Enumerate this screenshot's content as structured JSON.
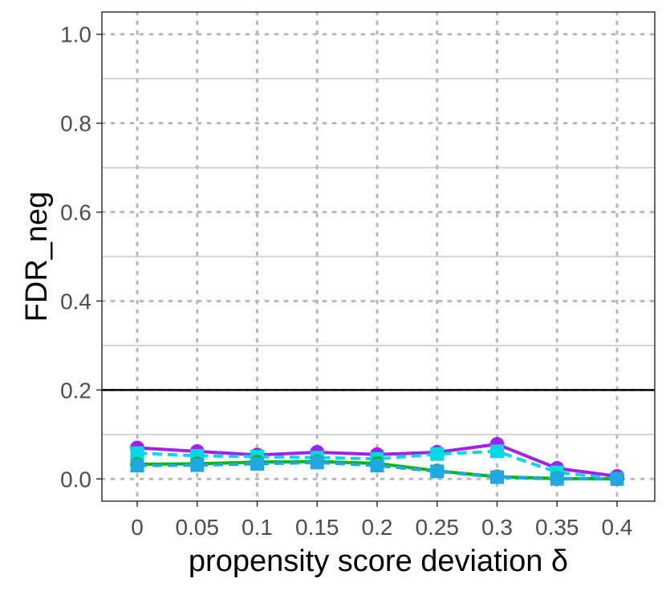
{
  "chart_data": {
    "type": "line",
    "title": "",
    "xlabel": "propensity score deviation δ",
    "ylabel": "FDR_neg",
    "categories": [
      "0",
      "0.05",
      "0.1",
      "0.15",
      "0.2",
      "0.25",
      "0.3",
      "0.35",
      "0.4"
    ],
    "ylim": [
      -0.05,
      1.05
    ],
    "yticks": [
      0.0,
      0.2,
      0.4,
      0.6,
      0.8,
      1.0
    ],
    "ytick_labels": [
      "0.0",
      "0.2",
      "0.4",
      "0.6",
      "0.8",
      "1.0"
    ],
    "grid": "dotted major, solid minor",
    "reference_line": {
      "y": 0.2,
      "color": "#000000"
    },
    "legend": "none",
    "series": [
      {
        "color": "#a020f0",
        "marker": "circle",
        "dash": "solid",
        "values": [
          0.07,
          0.062,
          0.054,
          0.06,
          0.055,
          0.06,
          0.078,
          0.024,
          0.006
        ]
      },
      {
        "color": "#00d8e8",
        "marker": "square",
        "dash": "dashed",
        "values": [
          0.058,
          0.052,
          0.05,
          0.048,
          0.045,
          0.056,
          0.062,
          0.015,
          0.0
        ]
      },
      {
        "color": "#00b800",
        "marker": "circle",
        "dash": "solid",
        "values": [
          0.033,
          0.034,
          0.038,
          0.039,
          0.035,
          0.018,
          0.005,
          0.001,
          0.0
        ]
      },
      {
        "color": "#22a8e0",
        "marker": "square",
        "dash": "dashed",
        "values": [
          0.03,
          0.031,
          0.034,
          0.037,
          0.03,
          0.017,
          0.004,
          0.0,
          0.0
        ]
      }
    ]
  }
}
